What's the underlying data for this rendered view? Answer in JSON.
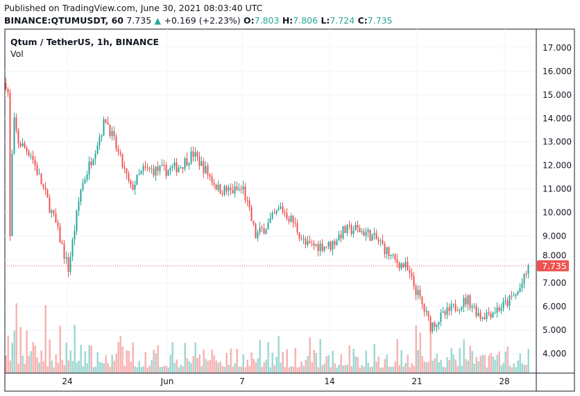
{
  "header": {
    "published": "Published on TradingView.com, June 30, 2021 08:03:40 UTC",
    "symbol": "BINANCE:QTUMUSDT, 60",
    "last": "7.735",
    "change": "+0.169 (+2.23%)",
    "o_label": "O:",
    "o": "7.803",
    "h_label": "H:",
    "h": "7.806",
    "l_label": "L:",
    "l": "7.724",
    "c_label": "C:",
    "c": "7.735"
  },
  "legend": {
    "title": "Qtum / TetherUS, 1h, BINANCE",
    "vol": "Vol"
  },
  "colors": {
    "up": "#26a69a",
    "down": "#ef5350",
    "price_label": "#ef5350"
  },
  "chart_data": {
    "type": "candlestick",
    "title": "Qtum / TetherUS, 1h, BINANCE",
    "grid": true,
    "ylim": [
      3.3,
      17.8
    ],
    "y_ticks": [
      "17.000",
      "16.000",
      "15.000",
      "14.000",
      "13.000",
      "12.000",
      "11.000",
      "10.000",
      "9.000",
      "8.000",
      "7.000",
      "6.000",
      "5.000",
      "4.000"
    ],
    "x_ticks": [
      {
        "label": "24",
        "day": 5
      },
      {
        "label": "Jun",
        "day": 13
      },
      {
        "label": "7",
        "day": 19
      },
      {
        "label": "14",
        "day": 26
      },
      {
        "label": "21",
        "day": 33
      },
      {
        "label": "28",
        "day": 40
      }
    ],
    "x_axis_start": "2021-05-19",
    "x_axis_span_days": 42,
    "approx_daily_close": [
      15.5,
      13.0,
      12.5,
      11.0,
      9.5,
      7.6,
      11.0,
      12.5,
      14.0,
      12.5,
      11.0,
      11.8,
      11.8,
      11.8,
      12.0,
      12.5,
      11.8,
      11.0,
      10.9,
      11.0,
      9.0,
      9.5,
      10.2,
      9.6,
      8.6,
      8.6,
      8.6,
      9.2,
      9.3,
      9.1,
      8.7,
      8.0,
      7.7,
      6.5,
      5.2,
      5.6,
      6.0,
      6.3,
      5.6,
      5.8,
      6.1,
      6.6,
      7.735
    ],
    "last_price": "7.735"
  }
}
